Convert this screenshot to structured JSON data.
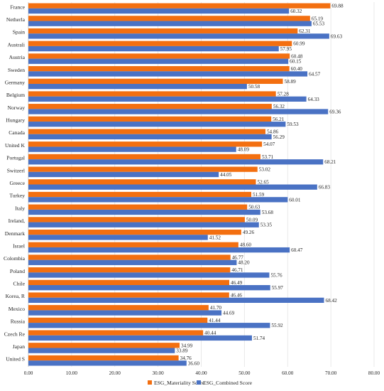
{
  "chart_data": {
    "type": "bar",
    "orientation": "horizontal",
    "categories": [
      "France",
      "Netherla",
      "Spain",
      "Australi",
      "Austria",
      "Sweden",
      "Germany",
      "Belgium",
      "Norway",
      "Hungary",
      "Canada",
      "United K",
      "Portugal",
      "Switzerl",
      "Greece",
      "Turkey",
      "Italy",
      "Ireland,",
      "Denmark",
      "Israel",
      "Colombia",
      "Poland",
      "Chile",
      "Korea, R",
      "Mexico",
      "Russia",
      "Czech Re",
      "Japan",
      "United S"
    ],
    "series": [
      {
        "name": "ESG_Materiality Score",
        "color": "#f36f10",
        "values": [
          69.88,
          65.19,
          62.31,
          60.99,
          60.48,
          60.4,
          58.89,
          57.28,
          56.32,
          56.21,
          54.86,
          54.07,
          53.71,
          53.02,
          52.65,
          51.59,
          50.63,
          50.09,
          49.26,
          48.6,
          46.77,
          46.71,
          46.49,
          46.46,
          41.7,
          41.44,
          40.44,
          34.99,
          34.76
        ],
        "labels": [
          "69.88",
          "65.19",
          "62.31",
          "60.99",
          "60.48",
          "60.40",
          "58.89",
          "57.28",
          "56.32",
          "56.21",
          "54.86",
          "54.07",
          "53.71",
          "53.02",
          "52.65",
          "51.59",
          "50.63",
          "50.09",
          "49.26",
          "48.60",
          "46.77",
          "46.71",
          "46.49",
          "46.46",
          "41.70",
          "41.44",
          "40.44",
          "34.99",
          "34.76"
        ]
      },
      {
        "name": "ESG_Combined Score",
        "color": "#4a72c4",
        "values": [
          60.32,
          65.53,
          69.63,
          57.95,
          60.15,
          64.57,
          50.58,
          64.33,
          69.36,
          59.53,
          56.29,
          48.09,
          68.21,
          44.05,
          66.83,
          60.01,
          53.68,
          53.35,
          41.52,
          60.47,
          48.2,
          55.76,
          55.97,
          68.42,
          44.69,
          55.92,
          51.74,
          33.89,
          36.6
        ],
        "labels": [
          "60.32",
          "65.53",
          "69.63",
          "57.95",
          "60.15",
          "64.57",
          "50.58",
          "64.33",
          "69.36",
          "59.53",
          "56.29",
          "48.09",
          "68.21",
          "44.05",
          "66.83",
          "60.01",
          "53.68",
          "53.35",
          "41.52",
          "60.47",
          "48.20",
          "55.76",
          "55.97",
          "68.42",
          "44.69",
          "55.92",
          "51.74",
          "33.89",
          "36.60"
        ]
      }
    ],
    "xlim": [
      0,
      80
    ],
    "ticks": [
      0,
      10,
      20,
      30,
      40,
      50,
      60,
      70,
      80
    ],
    "tick_labels": [
      "0.00",
      "10.00",
      "20.00",
      "30.00",
      "40.00",
      "50.00",
      "60.00",
      "70.00",
      "80.00"
    ],
    "grid": true,
    "legend_position": "bottom"
  }
}
